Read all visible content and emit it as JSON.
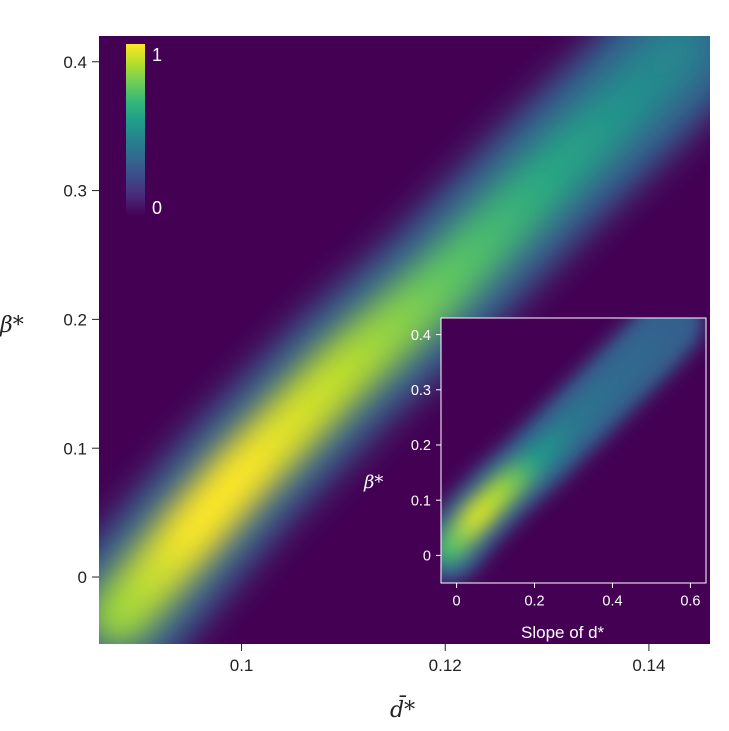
{
  "colors": {
    "colormap": [
      "#440154",
      "#482878",
      "#3e4989",
      "#31688e",
      "#26828e",
      "#1f9e89",
      "#35b779",
      "#6ece58",
      "#b5de2b",
      "#fde725"
    ],
    "background": "#440154"
  },
  "chart_data": [
    {
      "type": "heatmap",
      "title": "",
      "xlabel": "d̄*",
      "ylabel": "β*",
      "xlim": [
        0.086,
        0.146
      ],
      "ylim": [
        -0.052,
        0.42
      ],
      "x_ticks": [
        0.1,
        0.12,
        0.14
      ],
      "x_tick_labels": [
        "0.1",
        "0.12",
        "0.14"
      ],
      "y_ticks": [
        0,
        0.1,
        0.2,
        0.3,
        0.4
      ],
      "y_tick_labels": [
        "0",
        "0.1",
        "0.2",
        "0.3",
        "0.4"
      ],
      "colorbar": {
        "min_label": "0",
        "max_label": "1",
        "min": 0,
        "max": 1
      },
      "ridge": [
        {
          "x": 0.088,
          "y": -0.03,
          "value": 0.85
        },
        {
          "x": 0.095,
          "y": 0.035,
          "value": 1.0
        },
        {
          "x": 0.1,
          "y": 0.08,
          "value": 1.0
        },
        {
          "x": 0.11,
          "y": 0.16,
          "value": 0.9
        },
        {
          "x": 0.12,
          "y": 0.23,
          "value": 0.75
        },
        {
          "x": 0.13,
          "y": 0.31,
          "value": 0.6
        },
        {
          "x": 0.138,
          "y": 0.37,
          "value": 0.5
        },
        {
          "x": 0.143,
          "y": 0.41,
          "value": 0.45
        }
      ],
      "grid": false
    },
    {
      "type": "heatmap",
      "title": "",
      "xlabel": "Slope of d*",
      "ylabel": "β*",
      "xlim": [
        -0.04,
        0.64
      ],
      "ylim": [
        -0.05,
        0.43
      ],
      "x_ticks": [
        0,
        0.2,
        0.4,
        0.6
      ],
      "x_tick_labels": [
        "0",
        "0.2",
        "0.4",
        "0.6"
      ],
      "y_ticks": [
        0,
        0.1,
        0.2,
        0.3,
        0.4
      ],
      "y_tick_labels": [
        "0",
        "0.1",
        "0.2",
        "0.3",
        "0.4"
      ],
      "ridge": [
        {
          "x": -0.02,
          "y": 0.01,
          "value": 0.7
        },
        {
          "x": 0.05,
          "y": 0.07,
          "value": 0.95
        },
        {
          "x": 0.12,
          "y": 0.12,
          "value": 0.85
        },
        {
          "x": 0.2,
          "y": 0.17,
          "value": 0.55
        },
        {
          "x": 0.3,
          "y": 0.24,
          "value": 0.4
        },
        {
          "x": 0.4,
          "y": 0.31,
          "value": 0.35
        },
        {
          "x": 0.5,
          "y": 0.38,
          "value": 0.33
        },
        {
          "x": 0.55,
          "y": 0.42,
          "value": 0.3
        }
      ],
      "grid": false
    }
  ]
}
